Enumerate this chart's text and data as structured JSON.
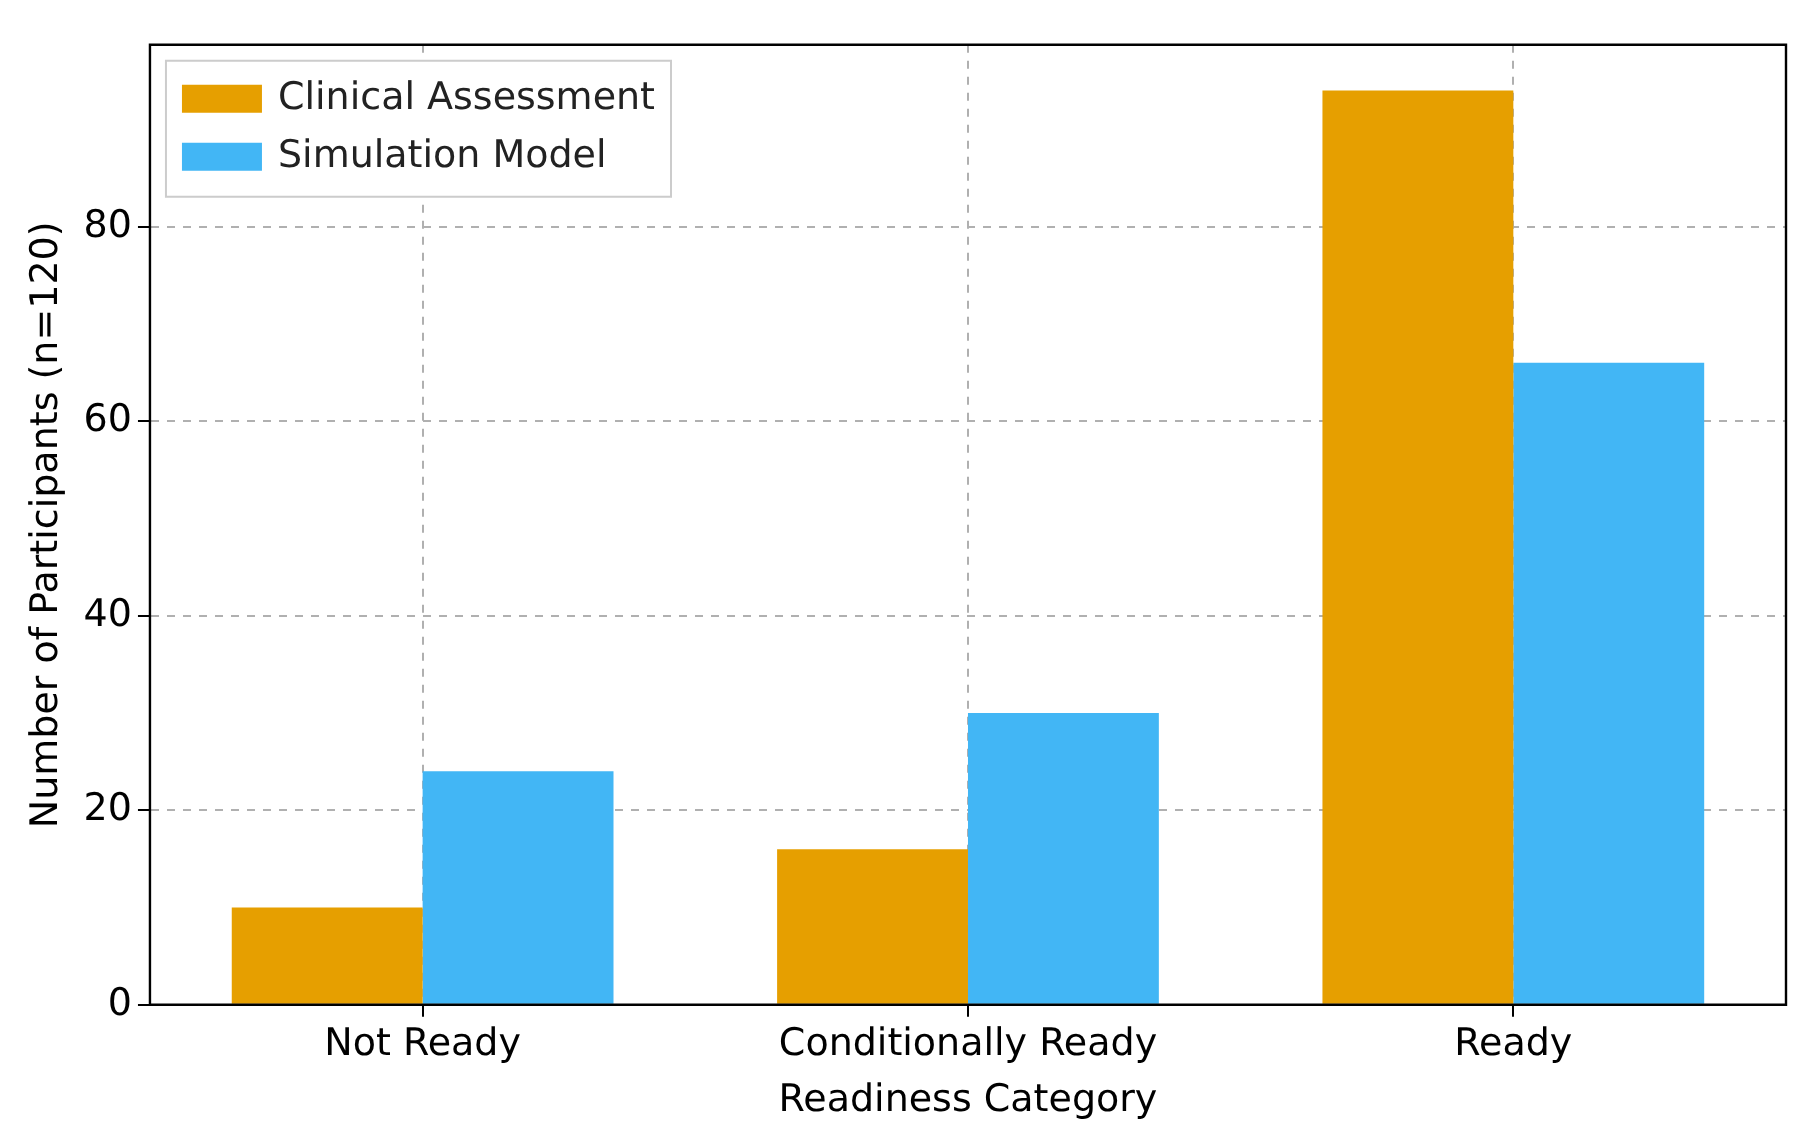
{
  "chart_data": {
    "type": "bar",
    "xlabel": "Readiness Category",
    "ylabel": "Number of Participants (n=120)",
    "categories": [
      "Not Ready",
      "Conditionally Ready",
      "Ready"
    ],
    "series": [
      {
        "name": "Clinical Assessment",
        "color": "#e69f00",
        "values": [
          10,
          16,
          94
        ]
      },
      {
        "name": "Simulation Model",
        "color": "#42b6f5",
        "values": [
          24,
          30,
          66
        ]
      }
    ],
    "ylim": [
      0,
      98.7
    ],
    "yticks": [
      0,
      20,
      40,
      60,
      80
    ],
    "grid": true,
    "legend": "top left"
  }
}
